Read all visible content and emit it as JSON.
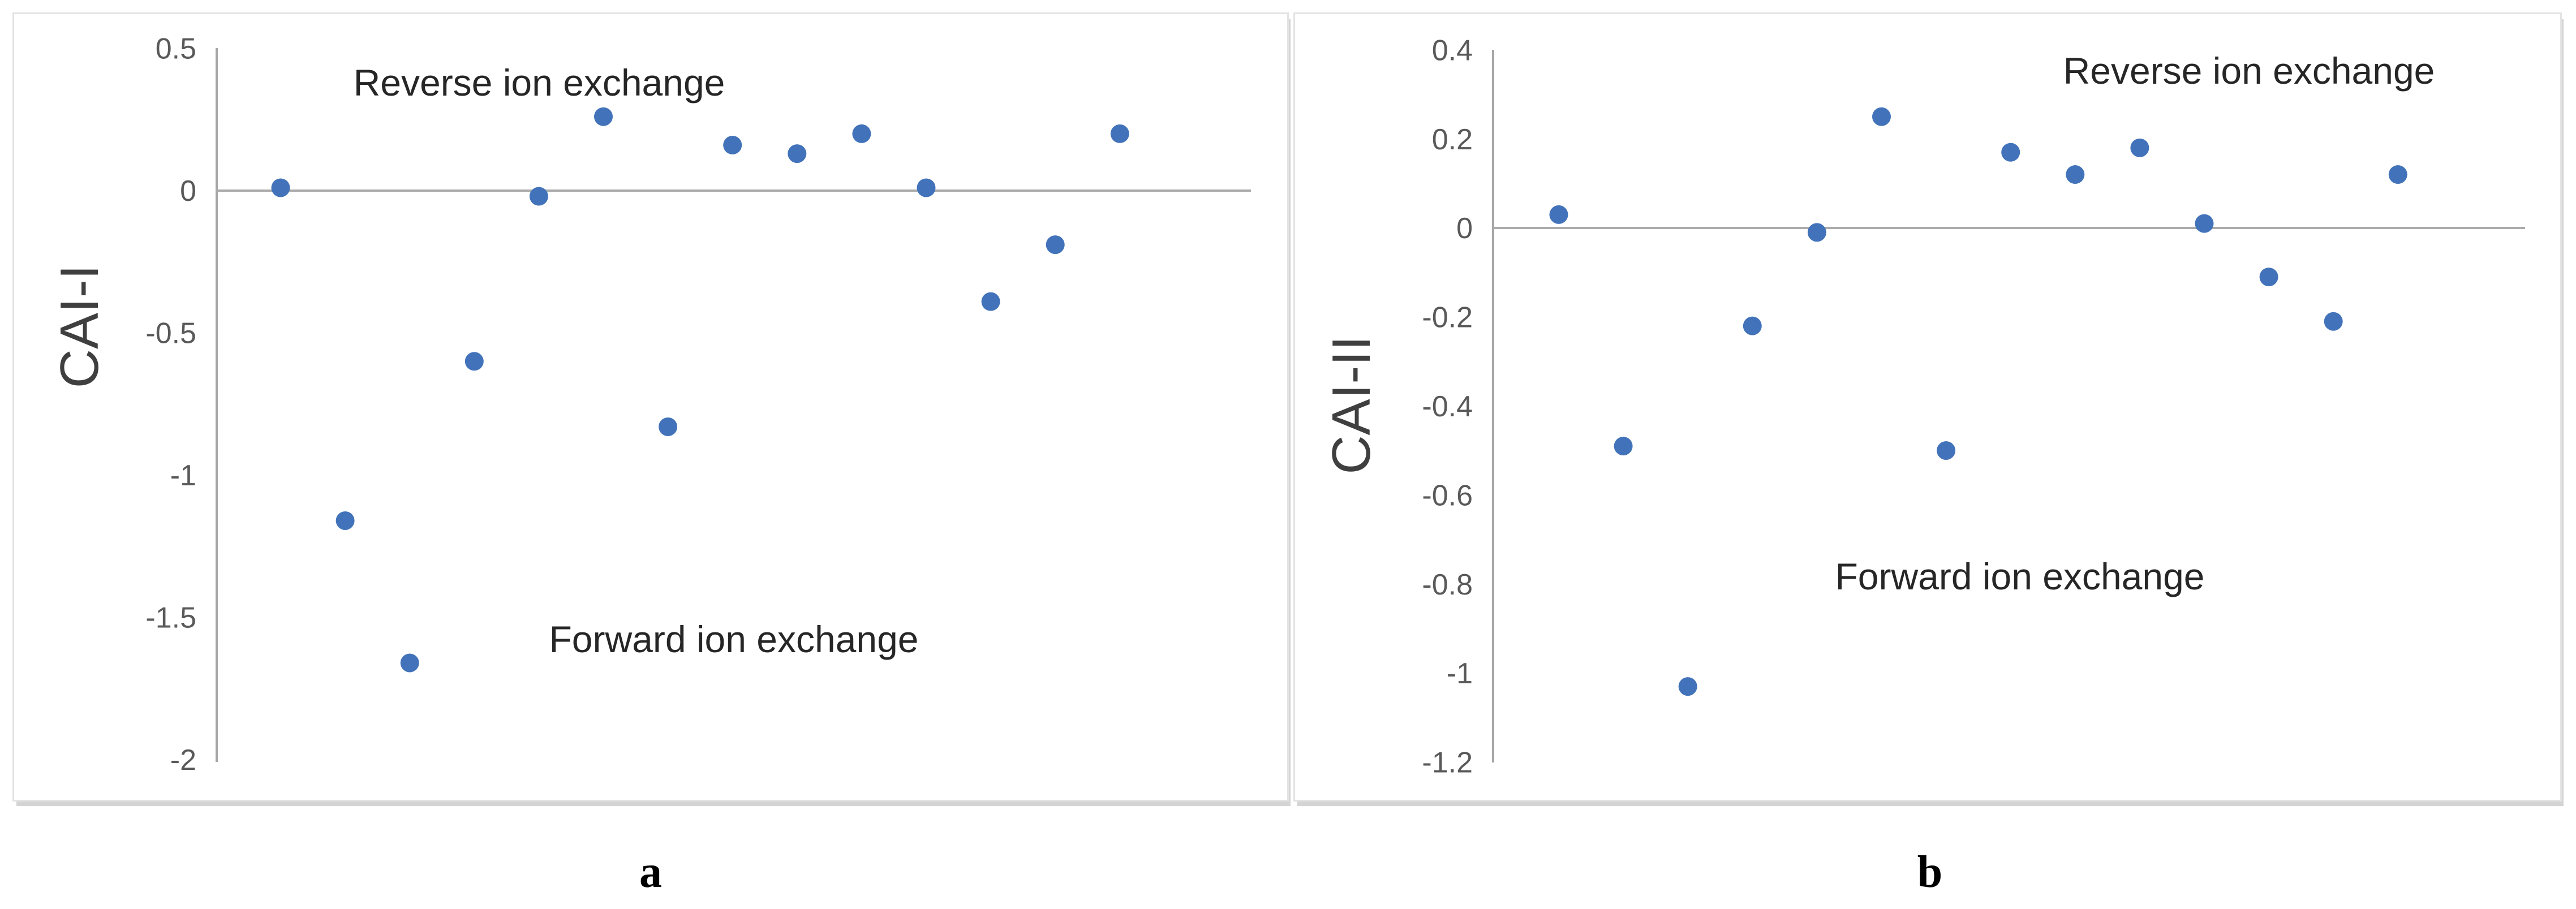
{
  "colors": {
    "marker_blue": "#4273BA",
    "axis_gray": "#a6a6a6",
    "zero_line_gray": "#ababab",
    "tick_text_gray": "#595959",
    "annotation_text": "#262626",
    "axis_title_text": "#3f3f3f",
    "panel_border": "#e3e3e3",
    "panel_shadow": "#d4d4d4",
    "caption_text": "#000000"
  },
  "chart_data": [
    {
      "type": "scatter",
      "panel": "a",
      "caption": "a",
      "title": "",
      "xlabel": "",
      "ylabel": "CAI-I",
      "ylim": [
        -2,
        0.5
      ],
      "tick_values": [
        0.5,
        0,
        -0.5,
        -1,
        -1.5,
        -2
      ],
      "tick_labels": [
        "0.5",
        "0",
        "-0.5",
        "-1",
        "-1.5",
        "-2"
      ],
      "x_axis_visible": false,
      "grid": "zero-line-only",
      "legend": false,
      "marker": "circle",
      "x": [
        1,
        2,
        3,
        4,
        5,
        6,
        7,
        8,
        9,
        10,
        11,
        12,
        13,
        14
      ],
      "values": [
        0.01,
        -1.16,
        -1.66,
        -0.6,
        -0.02,
        0.26,
        -0.83,
        0.16,
        0.13,
        0.2,
        0.01,
        -0.39,
        -0.19,
        0.2
      ],
      "annotations": {
        "above_line": "Reverse ion exchange",
        "below_line": "Forward ion exchange"
      }
    },
    {
      "type": "scatter",
      "panel": "b",
      "caption": "b",
      "title": "",
      "xlabel": "",
      "ylabel": "CAI-II",
      "ylim": [
        -1.2,
        0.4
      ],
      "tick_values": [
        0.4,
        0.2,
        0,
        -0.2,
        -0.4,
        -0.6,
        -0.8,
        -1,
        -1.2
      ],
      "tick_labels": [
        "0.4",
        "0.2",
        "0",
        "-0.2",
        "-0.4",
        "-0.6",
        "-0.8",
        "-1",
        "-1.2"
      ],
      "x_axis_visible": false,
      "grid": "zero-line-only",
      "legend": false,
      "marker": "circle",
      "x": [
        1,
        2,
        3,
        4,
        5,
        6,
        7,
        8,
        9,
        10,
        11,
        12,
        13,
        14
      ],
      "values": [
        0.03,
        -0.49,
        -1.03,
        -0.22,
        -0.01,
        0.25,
        -0.5,
        0.17,
        0.12,
        0.18,
        0.01,
        -0.11,
        -0.21,
        0.12
      ],
      "annotations": {
        "above_line": "Reverse ion exchange",
        "below_line": "Forward ion exchange"
      }
    }
  ]
}
